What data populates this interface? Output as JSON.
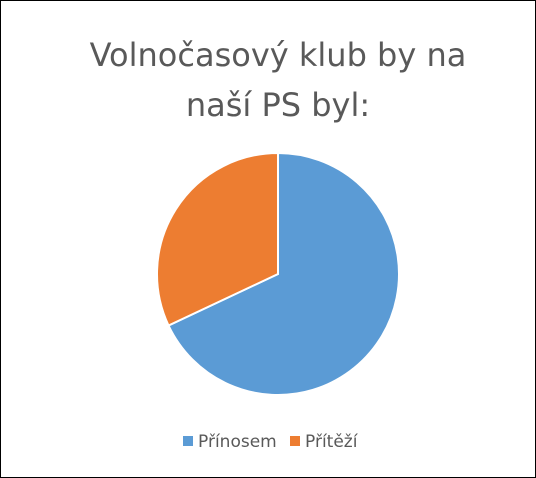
{
  "chart_data": {
    "type": "pie",
    "title": "Volnočasový klub by na naší PS byl:",
    "categories": [
      "Přínosem",
      "Přítěží"
    ],
    "values": [
      68,
      32
    ],
    "colors": [
      "#5b9bd5",
      "#ed7d31"
    ],
    "legend": "bottom"
  }
}
